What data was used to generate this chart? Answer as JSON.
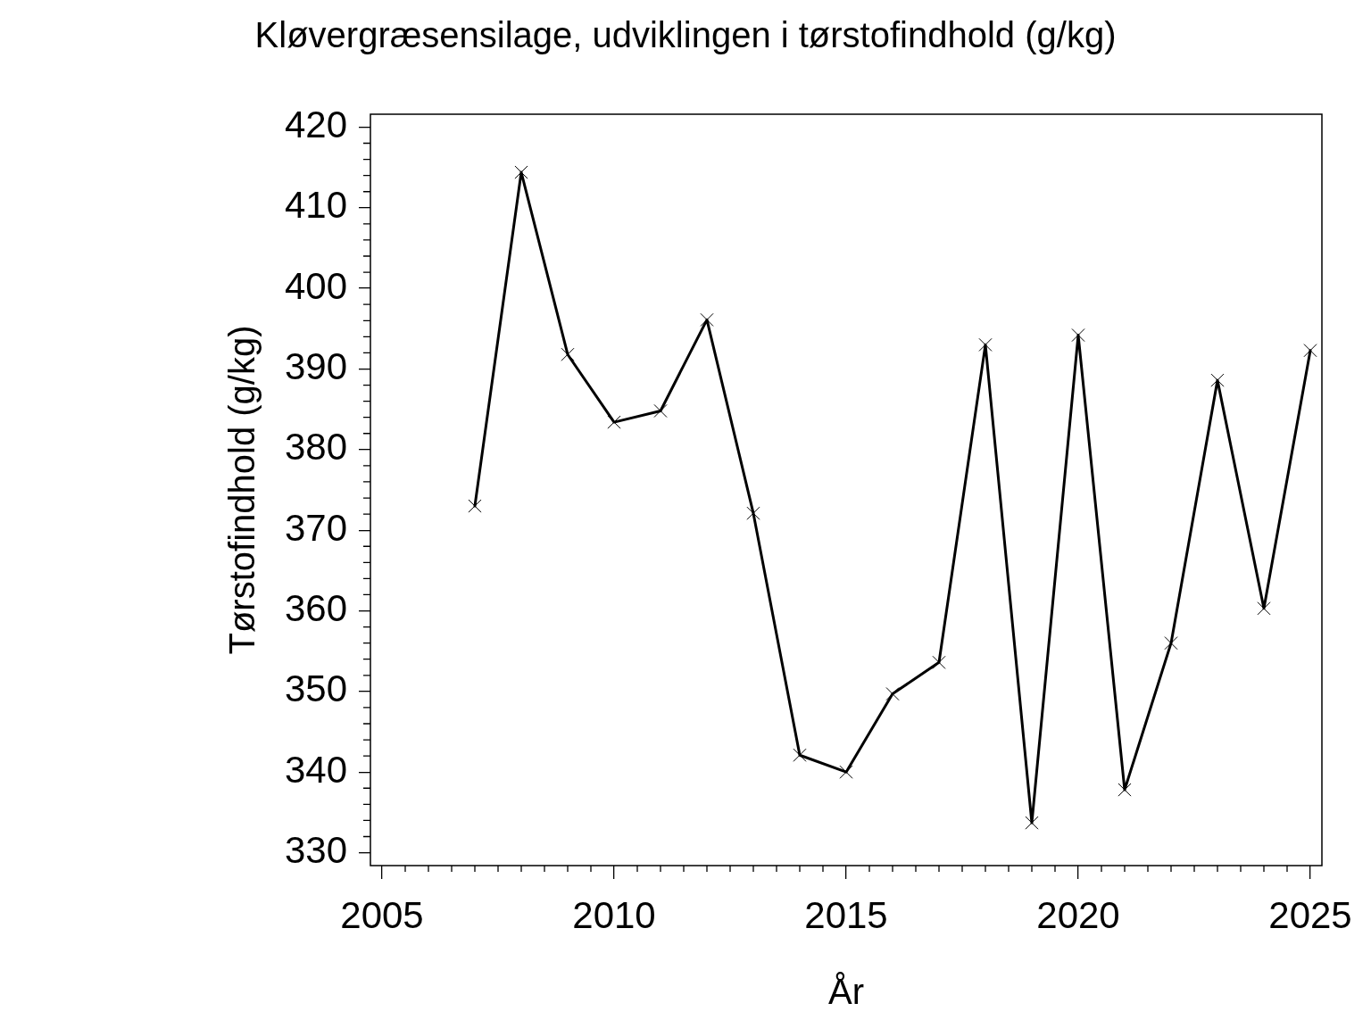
{
  "chart_data": {
    "type": "line",
    "title": "Kløvergræsensilage, udviklingen i tørstofindhold (g/kg)",
    "xlabel": "År",
    "ylabel": "Tørstofindhold (g/kg)",
    "x": [
      2007,
      2008,
      2009,
      2010,
      2011,
      2012,
      2013,
      2014,
      2015,
      2016,
      2017,
      2018,
      2019,
      2020,
      2021,
      2022,
      2023,
      2024,
      2025
    ],
    "values": [
      373.0,
      414.4,
      391.8,
      383.4,
      384.8,
      396.1,
      372.1,
      342.1,
      340.0,
      349.7,
      353.6,
      393.0,
      333.7,
      394.2,
      337.8,
      356.0,
      388.6,
      360.3,
      392.3
    ],
    "color": "#000000",
    "marker": "cross",
    "line_style": "solid",
    "xlim": [
      2004.75,
      2025.25
    ],
    "ylim": [
      328.4,
      421.6
    ],
    "xticks": [
      2005,
      {
        "value": 2005.5,
        "label": null
      },
      {
        "value": 2006,
        "label": null
      },
      {
        "value": 2006.5,
        "label": null
      },
      {
        "value": 2007,
        "label": null
      },
      {
        "value": 2007.5,
        "label": null
      },
      {
        "value": 2008,
        "label": null
      },
      {
        "value": 2008.5,
        "label": null
      },
      {
        "value": 2009,
        "label": null
      },
      {
        "value": 2009.5,
        "label": null
      },
      2010,
      {
        "value": 2010.5,
        "label": null
      },
      {
        "value": 2011,
        "label": null
      },
      {
        "value": 2011.5,
        "label": null
      },
      {
        "value": 2012,
        "label": null
      },
      {
        "value": 2012.5,
        "label": null
      },
      {
        "value": 2013,
        "label": null
      },
      {
        "value": 2013.5,
        "label": null
      },
      {
        "value": 2014,
        "label": null
      },
      {
        "value": 2014.5,
        "label": null
      },
      2015,
      {
        "value": 2015.5,
        "label": null
      },
      {
        "value": 2016,
        "label": null
      },
      {
        "value": 2016.5,
        "label": null
      },
      {
        "value": 2017,
        "label": null
      },
      {
        "value": 2017.5,
        "label": null
      },
      {
        "value": 2018,
        "label": null
      },
      {
        "value": 2018.5,
        "label": null
      },
      {
        "value": 2019,
        "label": null
      },
      {
        "value": 2019.5,
        "label": null
      },
      2020,
      {
        "value": 2020.5,
        "label": null
      },
      {
        "value": 2021,
        "label": null
      },
      {
        "value": 2021.5,
        "label": null
      },
      {
        "value": 2022,
        "label": null
      },
      {
        "value": 2022.5,
        "label": null
      },
      {
        "value": 2023,
        "label": null
      },
      {
        "value": 2023.5,
        "label": null
      },
      {
        "value": 2024,
        "label": null
      },
      {
        "value": 2024.5,
        "label": null
      },
      2025
    ],
    "yticks": [
      330,
      {
        "value": 332,
        "label": null
      },
      {
        "value": 334,
        "label": null
      },
      {
        "value": 336,
        "label": null
      },
      {
        "value": 338,
        "label": null
      },
      340,
      {
        "value": 342,
        "label": null
      },
      {
        "value": 344,
        "label": null
      },
      {
        "value": 346,
        "label": null
      },
      {
        "value": 348,
        "label": null
      },
      350,
      {
        "value": 352,
        "label": null
      },
      {
        "value": 354,
        "label": null
      },
      {
        "value": 356,
        "label": null
      },
      {
        "value": 358,
        "label": null
      },
      360,
      {
        "value": 362,
        "label": null
      },
      {
        "value": 364,
        "label": null
      },
      {
        "value": 366,
        "label": null
      },
      {
        "value": 368,
        "label": null
      },
      370,
      {
        "value": 372,
        "label": null
      },
      {
        "value": 374,
        "label": null
      },
      {
        "value": 376,
        "label": null
      },
      {
        "value": 378,
        "label": null
      },
      380,
      {
        "value": 382,
        "label": null
      },
      {
        "value": 384,
        "label": null
      },
      {
        "value": 386,
        "label": null
      },
      {
        "value": 388,
        "label": null
      },
      390,
      {
        "value": 392,
        "label": null
      },
      {
        "value": 394,
        "label": null
      },
      {
        "value": 396,
        "label": null
      },
      {
        "value": 398,
        "label": null
      },
      400,
      {
        "value": 402,
        "label": null
      },
      {
        "value": 404,
        "label": null
      },
      {
        "value": 406,
        "label": null
      },
      {
        "value": 408,
        "label": null
      },
      410,
      {
        "value": 412,
        "label": null
      },
      {
        "value": 414,
        "label": null
      },
      {
        "value": 416,
        "label": null
      },
      {
        "value": 418,
        "label": null
      },
      420
    ]
  }
}
